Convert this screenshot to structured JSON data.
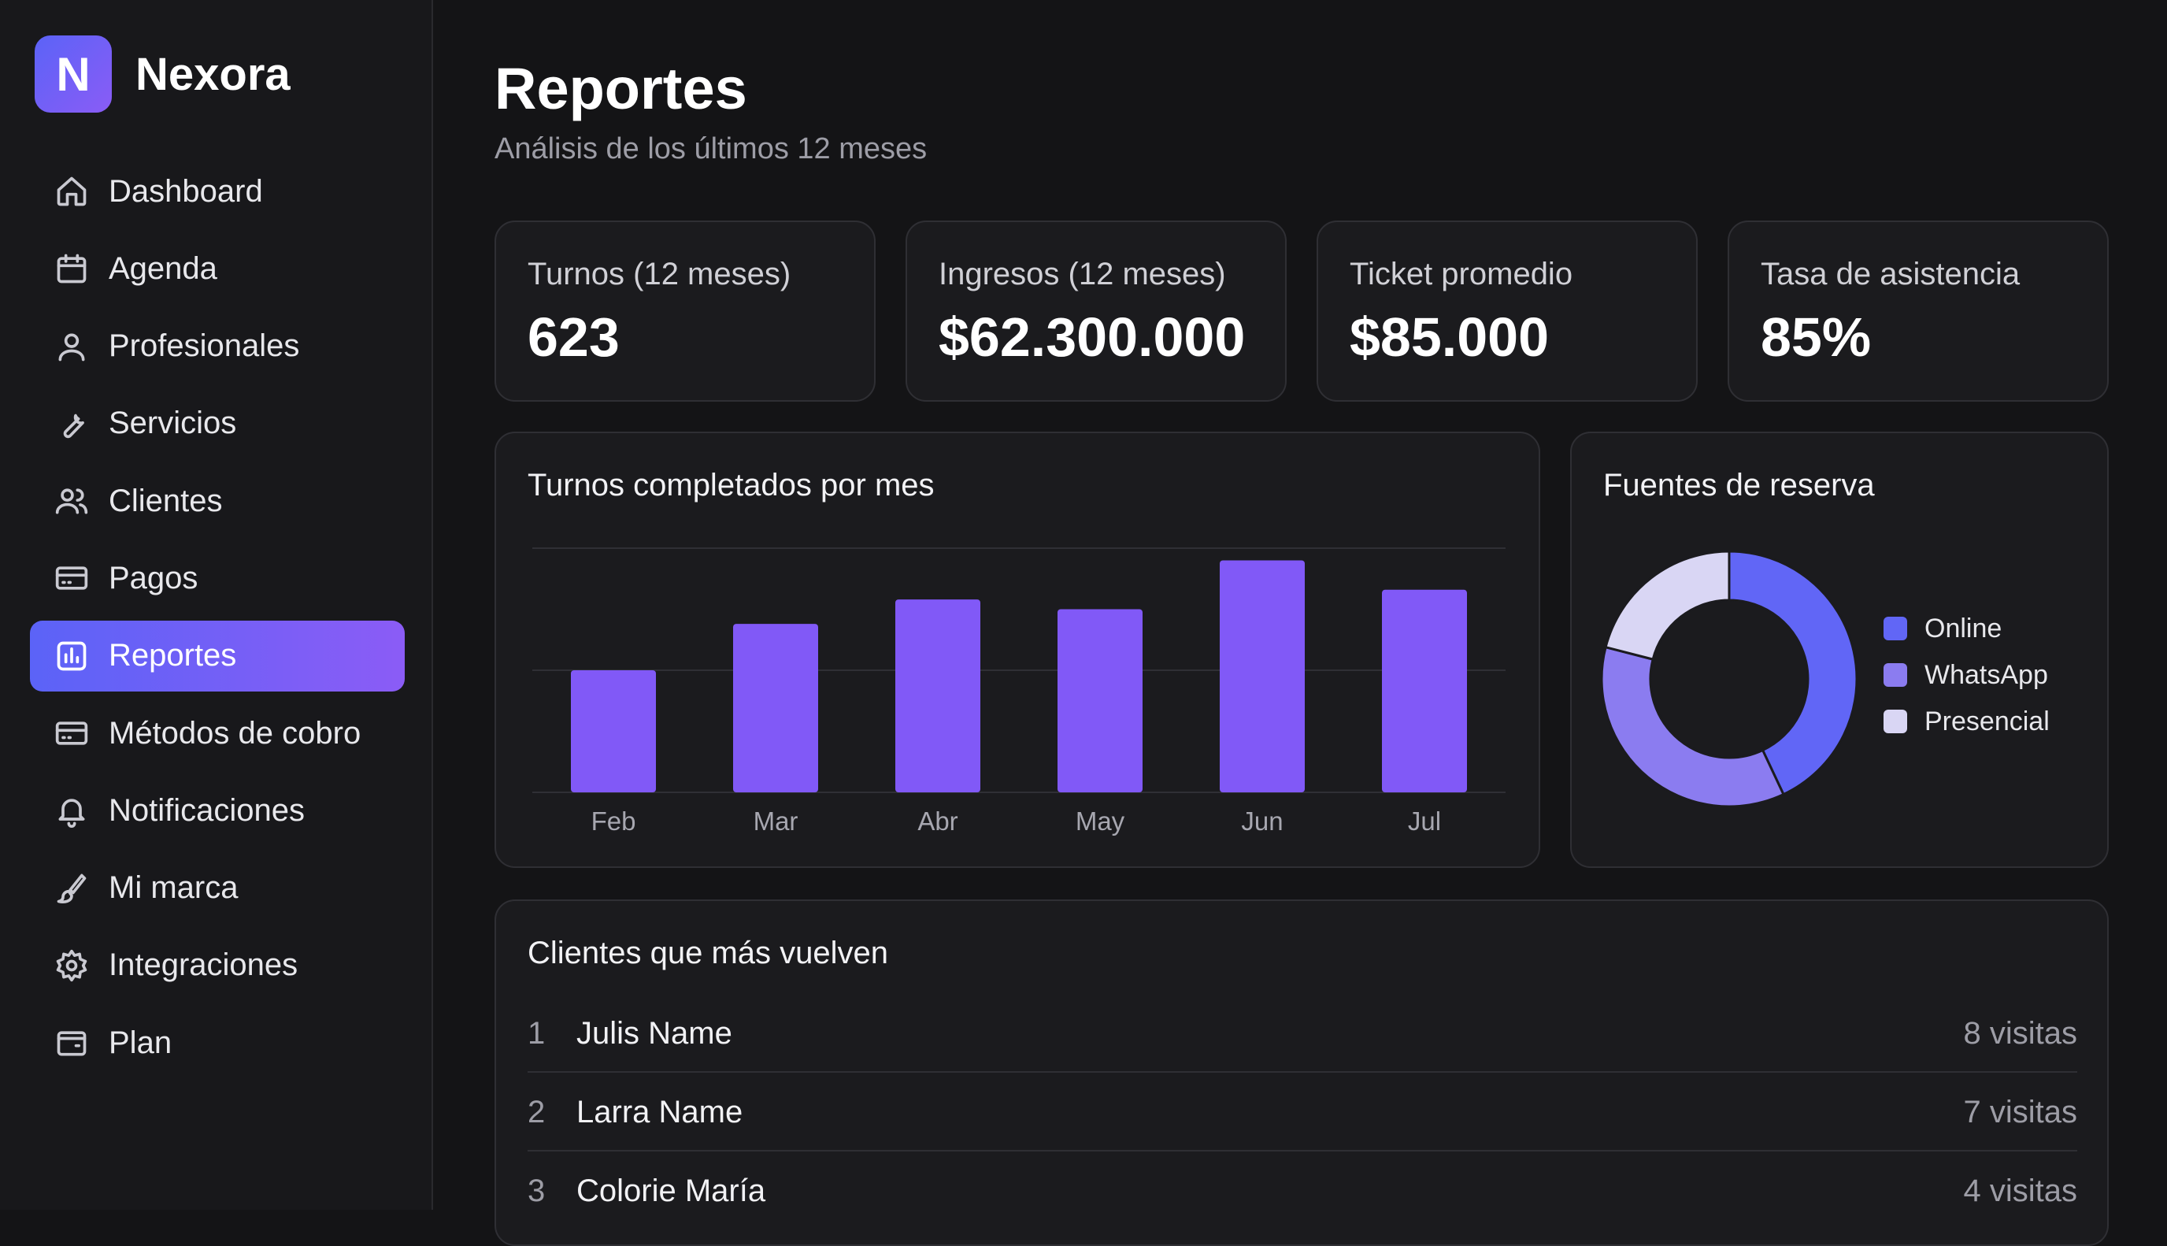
{
  "brand": {
    "logo_letter": "N",
    "name": "Nexora"
  },
  "sidebar": {
    "items": [
      {
        "label": "Dashboard",
        "icon": "home-icon"
      },
      {
        "label": "Agenda",
        "icon": "calendar-icon"
      },
      {
        "label": "Profesionales",
        "icon": "user-icon"
      },
      {
        "label": "Servicios",
        "icon": "wrench-icon"
      },
      {
        "label": "Clientes",
        "icon": "users-icon"
      },
      {
        "label": "Pagos",
        "icon": "card-icon"
      },
      {
        "label": "Reportes",
        "icon": "chart-icon",
        "active": true
      },
      {
        "label": "Métodos de cobro",
        "icon": "card-icon"
      },
      {
        "label": "Notificaciones",
        "icon": "bell-icon"
      },
      {
        "label": "Mi marca",
        "icon": "palette-icon"
      },
      {
        "label": "Integraciones",
        "icon": "gear-icon"
      },
      {
        "label": "Plan",
        "icon": "wallet-icon"
      }
    ]
  },
  "header": {
    "title": "Reportes",
    "subtitle": "Análisis de los últimos 12 meses"
  },
  "kpis": [
    {
      "label": "Turnos (12 meses)",
      "value": "623"
    },
    {
      "label": "Ingresos (12 meses)",
      "value": "$62.300.000"
    },
    {
      "label": "Ticket promedio",
      "value": "$85.000"
    },
    {
      "label": "Tasa de asistencia",
      "value": "85%"
    }
  ],
  "bar_card": {
    "title": "Turnos completados por mes"
  },
  "donut_card": {
    "title": "Fuentes de reserva"
  },
  "chart_data": [
    {
      "type": "bar",
      "title": "Turnos completados por mes",
      "categories": [
        "Feb",
        "Mar",
        "Abr",
        "May",
        "Jun",
        "Jul"
      ],
      "values": [
        50,
        69,
        79,
        75,
        95,
        83
      ],
      "ylim": [
        0,
        100
      ],
      "grid": true,
      "color": "#8159f7"
    },
    {
      "type": "pie",
      "title": "Fuentes de reserva",
      "donut": true,
      "labels": [
        "Online",
        "WhatsApp",
        "Presencial"
      ],
      "values": [
        43,
        36,
        21
      ],
      "colors": [
        "#6166f6",
        "#8b7cf0",
        "#d9d6f4"
      ],
      "legend_position": "right"
    }
  ],
  "top_clients": {
    "title": "Clientes que más vuelven",
    "rows": [
      {
        "rank": "1",
        "name": "Julis Name",
        "visits": "8 visitas"
      },
      {
        "rank": "2",
        "name": "Larra Name",
        "visits": "7 visitas"
      },
      {
        "rank": "3",
        "name": "Colorie María",
        "visits": "4 visitas"
      }
    ]
  }
}
